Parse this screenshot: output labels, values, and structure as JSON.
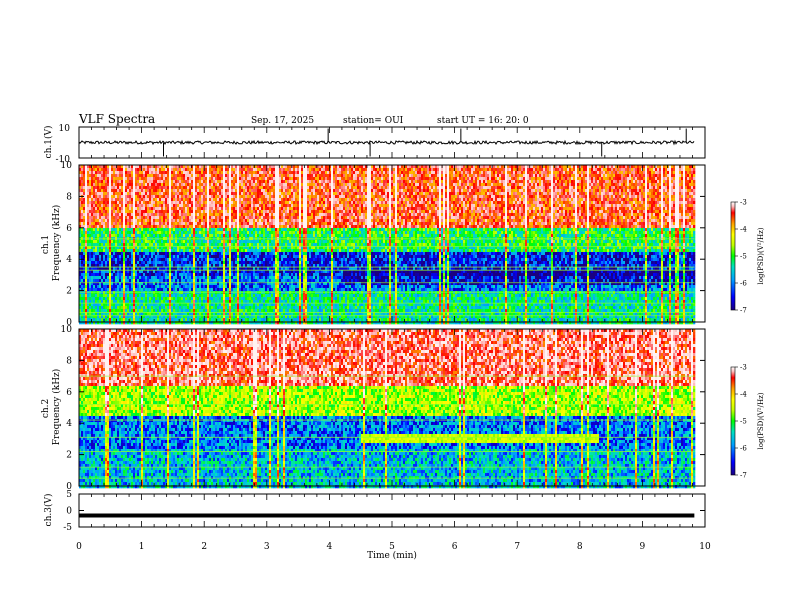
{
  "header": {
    "title": "VLF Spectra",
    "date": "Sep. 17, 2025",
    "station": "station= OUI",
    "start": "start  UT =   16: 20: 0"
  },
  "chart_data": [
    {
      "type": "line",
      "panel": "ch1-waveform",
      "ylabel": "ch.1(V)",
      "ylim": [
        -10,
        10
      ],
      "y_ticks": [
        "10",
        "-10"
      ],
      "color": "#000000",
      "baseline": 0,
      "approx_amplitude": 1,
      "spike_times_min": [
        1.35,
        3.98,
        4.65,
        6.1,
        8.35,
        9.7
      ]
    },
    {
      "type": "heatmap",
      "panel": "ch1-spectrogram",
      "ylabel": "ch.1\nFrequency  (kHz)",
      "ylim": [
        0,
        10
      ],
      "y_ticks": [
        "0",
        "2",
        "4",
        "6",
        "8",
        "10"
      ],
      "xlim": [
        0,
        10
      ],
      "data_extent_min": 9.83,
      "colorbar": {
        "label": "log(PSD)(V²/Hz)",
        "range": [
          -7,
          -3
        ],
        "ticks": [
          "-3",
          "-4",
          "-5",
          "-6",
          "-7"
        ],
        "colors": [
          "#1a0080",
          "#0000ff",
          "#00a0ff",
          "#00e0c0",
          "#00ff00",
          "#c0ff00",
          "#ffff00",
          "#ffa000",
          "#ff0000",
          "#ffc0c0",
          "#ffffff"
        ]
      },
      "feature_bands_khz": [
        {
          "from": 6.0,
          "to": 10.0,
          "level": -3.8
        },
        {
          "from": 4.5,
          "to": 6.0,
          "level": -5.5
        },
        {
          "from": 3.0,
          "to": 4.5,
          "level": -6.6
        },
        {
          "from": 2.0,
          "to": 3.0,
          "level": -6.3
        },
        {
          "from": 0.0,
          "to": 2.0,
          "level": -5.7
        }
      ],
      "horizontal_lines_khz": [
        0.4,
        0.6,
        1.2,
        1.9,
        2.5,
        3.3,
        3.5,
        4.8,
        5.3
      ]
    },
    {
      "type": "heatmap",
      "panel": "ch2-spectrogram",
      "ylabel": "ch.2\nFrequency  (kHz)",
      "ylim": [
        0,
        10
      ],
      "y_ticks": [
        "0",
        "2",
        "4",
        "6",
        "8",
        "10"
      ],
      "xlim": [
        0,
        10
      ],
      "data_extent_min": 9.83,
      "colorbar": {
        "label": "log(PSD)(V²/Hz)",
        "range": [
          -7,
          -3
        ],
        "ticks": [
          "-3",
          "-4",
          "-5",
          "-6",
          "-7"
        ]
      },
      "feature_bands_khz": [
        {
          "from": 6.5,
          "to": 10.0,
          "level": -3.6
        },
        {
          "from": 4.5,
          "to": 6.5,
          "level": -5.0
        },
        {
          "from": 2.5,
          "to": 4.5,
          "level": -6.3
        },
        {
          "from": 0.0,
          "to": 2.5,
          "level": -6.0
        }
      ],
      "noise_band": {
        "t_from_min": 4.5,
        "t_to_min": 8.3,
        "f_from_khz": 2.9,
        "f_to_khz": 3.5
      },
      "horizontal_lines_khz": [
        0.5,
        1.2,
        2.2,
        3.1,
        4.2,
        5.2,
        7.0
      ]
    },
    {
      "type": "line",
      "panel": "ch3-waveform",
      "ylabel": "ch.3(V)",
      "ylim": [
        -5,
        5
      ],
      "y_ticks": [
        "5",
        "0",
        "-5"
      ],
      "color": "#000000",
      "baseline": -1.5,
      "x": [
        0,
        9.83
      ],
      "y": [
        -1.5,
        -1.5
      ]
    }
  ],
  "xaxis": {
    "label": "Time  (min)",
    "ticks": [
      "0",
      "1",
      "2",
      "3",
      "4",
      "5",
      "6",
      "7",
      "8",
      "9",
      "10"
    ],
    "xlim": [
      0,
      10
    ]
  }
}
